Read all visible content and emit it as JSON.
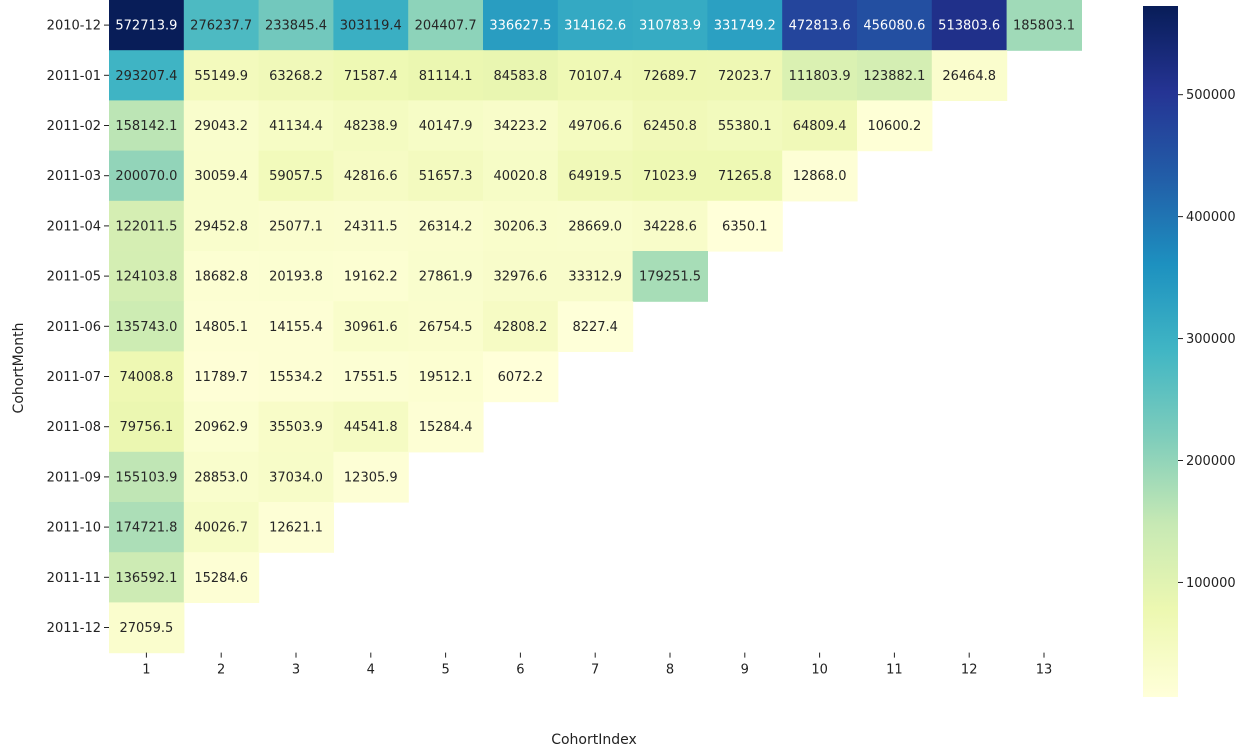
{
  "chart_data": {
    "type": "heatmap",
    "title": "",
    "xlabel": "CohortIndex",
    "ylabel": "CohortMonth",
    "x": [
      "1",
      "2",
      "3",
      "4",
      "5",
      "6",
      "7",
      "8",
      "9",
      "10",
      "11",
      "12",
      "13"
    ],
    "y": [
      "2010-12",
      "2011-01",
      "2011-02",
      "2011-03",
      "2011-04",
      "2011-05",
      "2011-06",
      "2011-07",
      "2011-08",
      "2011-09",
      "2011-10",
      "2011-11",
      "2011-12"
    ],
    "values": [
      [
        572713.9,
        276237.7,
        233845.4,
        303119.4,
        204407.7,
        336627.5,
        314162.6,
        310783.9,
        331749.2,
        472813.6,
        456080.6,
        513803.6,
        185803.1
      ],
      [
        293207.4,
        55149.9,
        63268.2,
        71587.4,
        81114.1,
        84583.8,
        70107.4,
        72689.7,
        72023.7,
        111803.9,
        123882.1,
        26464.8,
        null
      ],
      [
        158142.1,
        29043.2,
        41134.4,
        48238.9,
        40147.9,
        34223.2,
        49706.6,
        62450.8,
        55380.1,
        64809.4,
        10600.2,
        null,
        null
      ],
      [
        200070.0,
        30059.4,
        59057.5,
        42816.6,
        51657.3,
        40020.8,
        64919.5,
        71023.9,
        71265.8,
        12868.0,
        null,
        null,
        null
      ],
      [
        122011.5,
        29452.8,
        25077.1,
        24311.5,
        26314.2,
        30206.3,
        28669.0,
        34228.6,
        6350.1,
        null,
        null,
        null,
        null
      ],
      [
        124103.8,
        18682.8,
        20193.8,
        19162.2,
        27861.9,
        32976.6,
        33312.9,
        179251.5,
        null,
        null,
        null,
        null,
        null
      ],
      [
        135743.0,
        14805.1,
        14155.4,
        30961.6,
        26754.5,
        42808.2,
        8227.4,
        null,
        null,
        null,
        null,
        null,
        null
      ],
      [
        74008.8,
        11789.7,
        15534.2,
        17551.5,
        19512.1,
        6072.2,
        null,
        null,
        null,
        null,
        null,
        null,
        null
      ],
      [
        79756.1,
        20962.9,
        35503.9,
        44541.8,
        15284.4,
        null,
        null,
        null,
        null,
        null,
        null,
        null,
        null
      ],
      [
        155103.9,
        28853.0,
        37034.0,
        12305.9,
        null,
        null,
        null,
        null,
        null,
        null,
        null,
        null,
        null
      ],
      [
        174721.8,
        40026.7,
        12621.1,
        null,
        null,
        null,
        null,
        null,
        null,
        null,
        null,
        null,
        null
      ],
      [
        136592.1,
        15284.6,
        null,
        null,
        null,
        null,
        null,
        null,
        null,
        null,
        null,
        null,
        null
      ],
      [
        27059.5,
        null,
        null,
        null,
        null,
        null,
        null,
        null,
        null,
        null,
        null,
        null,
        null
      ]
    ],
    "colormap": "YlGnBu",
    "colorbar": {
      "min": 6072.2,
      "max": 572713.9,
      "ticks": [
        100000,
        200000,
        300000,
        400000,
        500000
      ],
      "tick_labels": [
        "100000",
        "200000",
        "300000",
        "400000",
        "500000"
      ]
    },
    "grid": false
  }
}
